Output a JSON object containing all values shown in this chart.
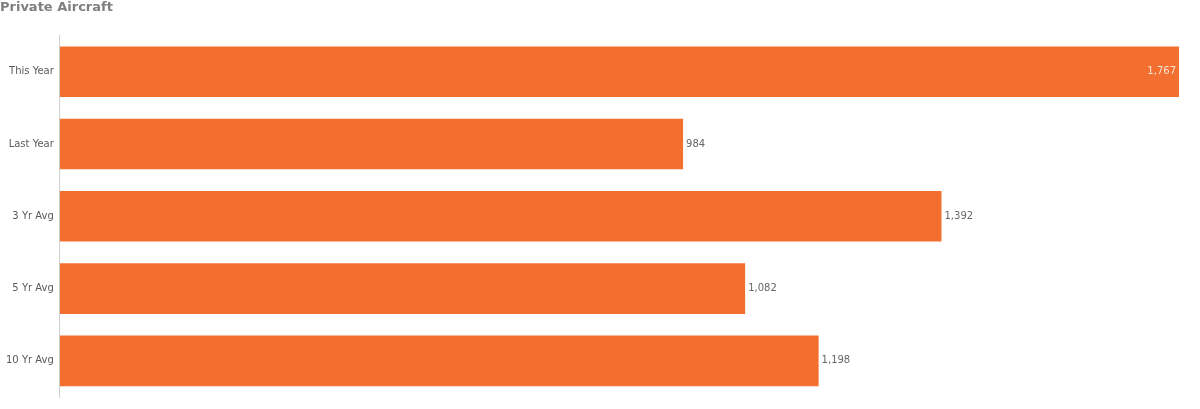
{
  "chart_data": {
    "type": "bar",
    "orientation": "horizontal",
    "title": "Private Aircraft",
    "categories": [
      "This Year",
      "Last Year",
      "3 Yr Avg",
      "5 Yr Avg",
      "10 Yr Avg"
    ],
    "values": [
      1767,
      984,
      1392,
      1082,
      1198
    ],
    "value_labels": [
      "1,767",
      "984",
      "1,392",
      "1,082",
      "1,198"
    ],
    "color": "#f26f2f",
    "legend": false
  }
}
